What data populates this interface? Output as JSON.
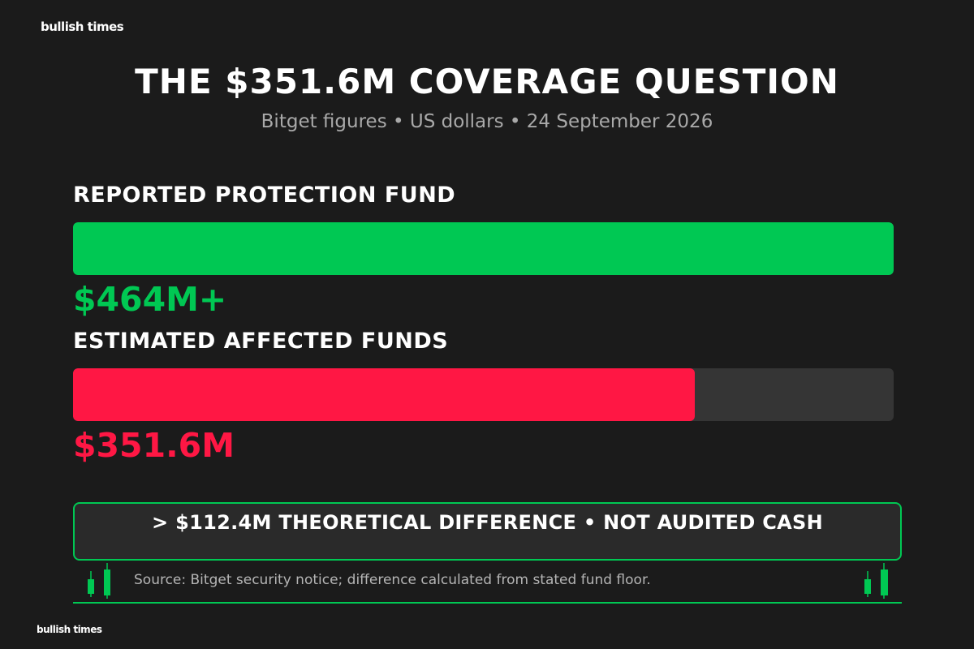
{
  "brand": {
    "top_logo": "bullish times",
    "bottom_logo": "bullish times"
  },
  "header": {
    "title": "THE $351.6M COVERAGE QUESTION",
    "subtitle": "Bitget figures • US dollars • 24 September 2026"
  },
  "colors": {
    "background": "#1b1b1b",
    "green": "#00c853",
    "red": "#ff1744",
    "track": "#353535"
  },
  "chart_data": {
    "type": "bar",
    "orientation": "horizontal",
    "max": 464,
    "bars": [
      {
        "label": "REPORTED PROTECTION FUND",
        "value": 464,
        "display": "$464M+",
        "color": "#00c853"
      },
      {
        "label": "ESTIMATED AFFECTED FUNDS",
        "value": 351.6,
        "display": "$351.6M",
        "color": "#ff1744"
      }
    ]
  },
  "callout": {
    "text": "> $112.4M THEORETICAL DIFFERENCE • NOT AUDITED CASH"
  },
  "source": {
    "text": "Source: Bitget security notice; difference calculated from stated fund floor."
  }
}
